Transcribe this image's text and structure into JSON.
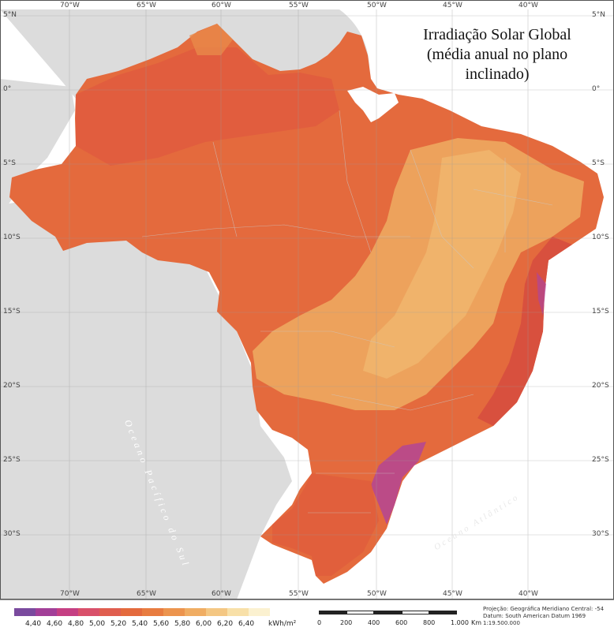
{
  "title": {
    "line1": "Irradiação  Solar Global",
    "line2": "(média anual no plano",
    "line3": "inclinado)"
  },
  "grid": {
    "longitudes": [
      "70°W",
      "65°W",
      "60°W",
      "55°W",
      "50°W",
      "45°W",
      "40°W"
    ],
    "latitudes": [
      "5°N",
      "0°",
      "5°S",
      "10°S",
      "15°S",
      "20°S",
      "25°S",
      "30°S"
    ]
  },
  "water_labels": {
    "pacific": "Oceano Pacífico do Sul",
    "atlantic": "Oceano Atlântico"
  },
  "legend": {
    "unit": "kWh/m²",
    "classes": [
      {
        "label": "4,40",
        "color": "#7a4a9e"
      },
      {
        "label": "4,60",
        "color": "#a23f98"
      },
      {
        "label": "4,80",
        "color": "#c53f83"
      },
      {
        "label": "5,00",
        "color": "#d9506a"
      },
      {
        "label": "5,20",
        "color": "#e05e4f"
      },
      {
        "label": "5,40",
        "color": "#e46a3d"
      },
      {
        "label": "5,60",
        "color": "#e87c40"
      },
      {
        "label": "5,80",
        "color": "#ec944e"
      },
      {
        "label": "6,00",
        "color": "#f0ad63"
      },
      {
        "label": "6,20",
        "color": "#f4c783"
      },
      {
        "label": "6,40",
        "color": "#f8e0a8"
      },
      {
        "label": "",
        "color": "#fbf1d0"
      }
    ]
  },
  "scale_bar": {
    "labels": [
      "0",
      "200",
      "400",
      "600",
      "800",
      "1.000",
      "Km"
    ]
  },
  "projection": {
    "line1": "Projeção: Geográfica     Meridiano Central: -54",
    "line2": "Datum: South American Datum 1969",
    "line3": "1:19.500.000"
  },
  "colors": {
    "neighbor_land": "#dcdcdc",
    "ocean": "#ffffff",
    "brazil_base": "#e46a3d",
    "north_orange": "#e2603f",
    "central_light": "#eda25c",
    "central_lighter": "#f0b36b",
    "coast_red": "#d8503e",
    "coast_purple": "#b0449a",
    "south_orange": "#e46b3e",
    "border": "#c9c9c9"
  }
}
